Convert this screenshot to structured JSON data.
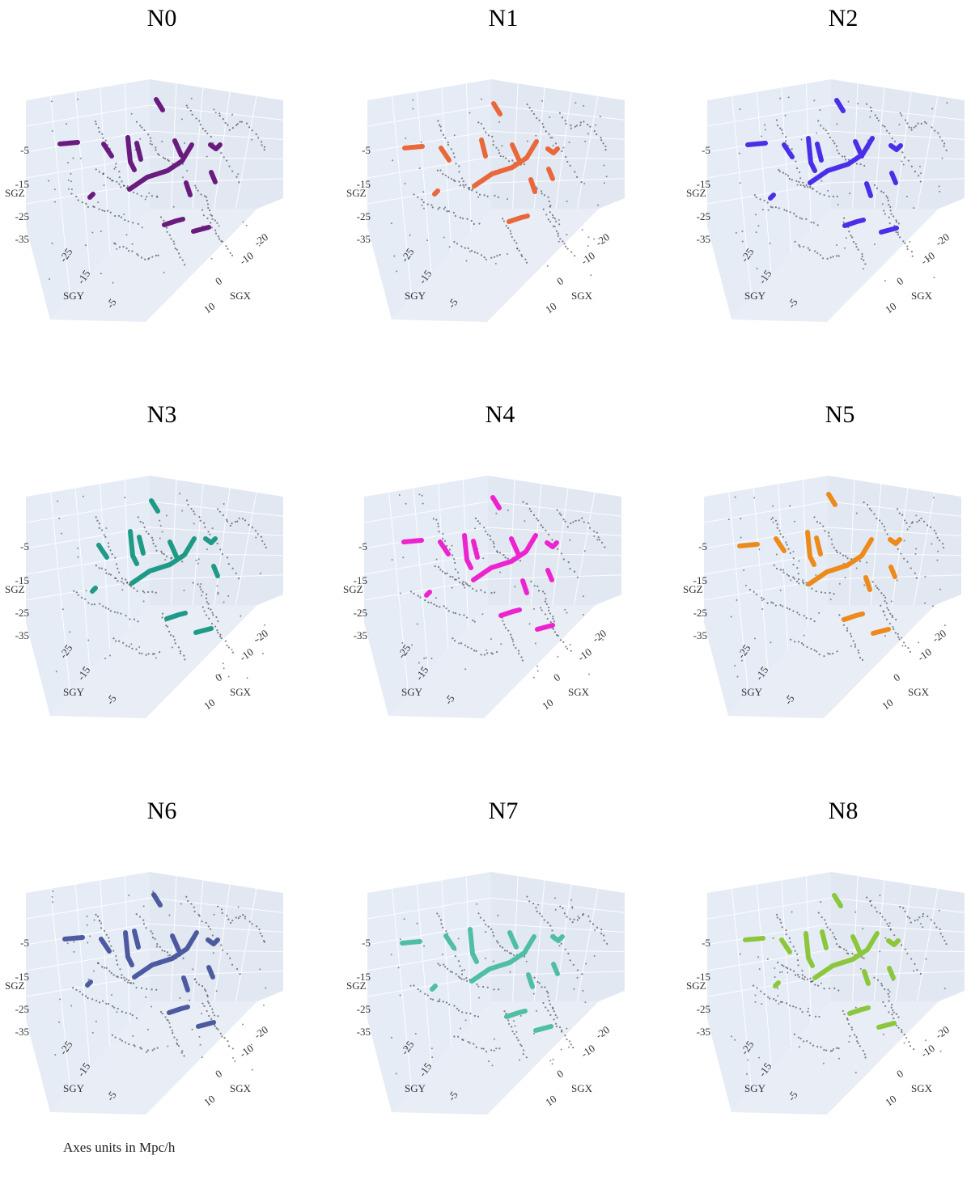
{
  "footnote": "Axes units in Mpc/h",
  "chart_data": {
    "type": "scatter",
    "axes": {
      "x": {
        "label": "SGX",
        "ticks": [
          "-20",
          "-10",
          "0",
          "10"
        ]
      },
      "y": {
        "label": "SGY",
        "ticks": [
          "-25",
          "-15",
          "-5"
        ]
      },
      "z": {
        "label": "SGZ",
        "ticks": [
          "-5",
          "-15",
          "-25",
          "-35"
        ]
      }
    },
    "panels": [
      {
        "title": "N0",
        "color": "#6a1b7e"
      },
      {
        "title": "N1",
        "color": "#e9673a"
      },
      {
        "title": "N2",
        "color": "#4a2ee8"
      },
      {
        "title": "N3",
        "color": "#1f9a86"
      },
      {
        "title": "N4",
        "color": "#ec23cf"
      },
      {
        "title": "N5",
        "color": "#ec8a1c"
      },
      {
        "title": "N6",
        "color": "#4d5aa0"
      },
      {
        "title": "N7",
        "color": "#4fbea3"
      },
      {
        "title": "N8",
        "color": "#8cc63c"
      }
    ]
  }
}
